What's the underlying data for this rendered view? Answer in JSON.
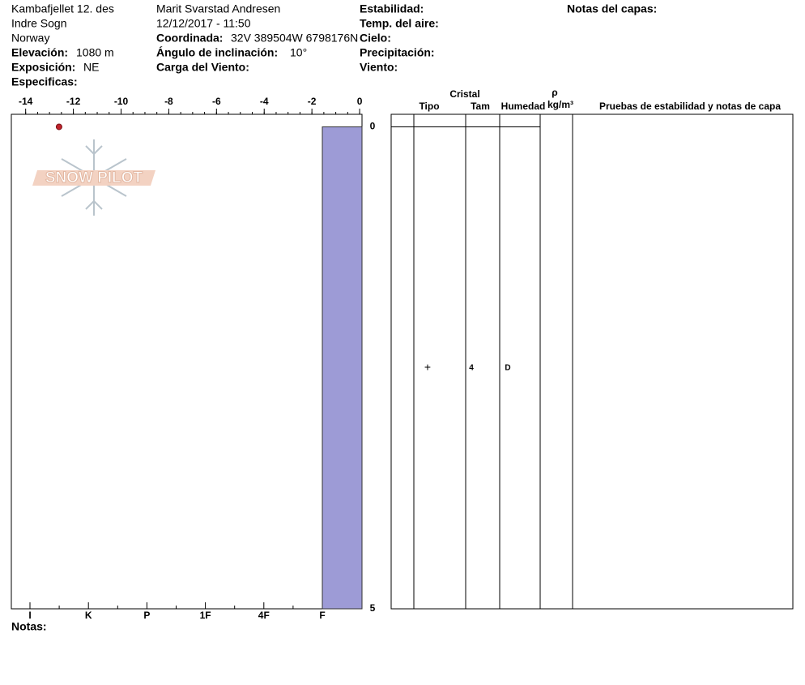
{
  "header": {
    "column1": [
      "Kambafjellet 12. des",
      "Indre Sogn",
      "Norway"
    ],
    "elevation": {
      "label": "Elevación:",
      "value": "1080 m"
    },
    "aspect": {
      "label": "Exposición:",
      "value": "NE"
    },
    "specifics": {
      "label": "Especificas:"
    },
    "observer": "Marit Svarstad Andresen",
    "datetime": "12/12/2017 - 11:50",
    "coordinate": {
      "label": "Coordinada:",
      "value": "32V 389504W 6798176N"
    },
    "slope": {
      "label": "Ángulo de inclinación:",
      "value": "10°"
    },
    "wind_loading": {
      "label": "Carga del Viento:"
    },
    "column3": [
      "Estabilidad:",
      "Temp. del aire:",
      "Cielo:",
      "Precipitación:",
      "Viento:"
    ],
    "layer_notes": "Notas del capas:"
  },
  "logo": "SNOW PILOT",
  "notes": "Notas:",
  "chart_data": {
    "type": "snowprofile",
    "xlim": [
      -14.6,
      0.1
    ],
    "xticks": [
      -14,
      -12,
      -10,
      -8,
      -6,
      -4,
      -2,
      0
    ],
    "ylim": [
      -0.13,
      5
    ],
    "yticks": [
      0,
      5
    ],
    "hardness_categories": [
      "I",
      "K",
      "P",
      "1F",
      "4F",
      "F"
    ],
    "bar_color": "#9d9bd6",
    "temperatures": [
      {
        "depth": 0,
        "temp": -12.6
      }
    ],
    "layers": [
      {
        "top": 0,
        "bottom": 5,
        "hardness": "F",
        "grain_type": "+",
        "grain_size": 4,
        "moisture": "D"
      }
    ],
    "table_headers": {
      "crystal": "Cristal",
      "type": "Tipo",
      "size": "Tam",
      "moisture": "Humedad",
      "rho": "ρ",
      "density_unit": "kg/m³",
      "tests": "Pruebas de estabilidad y notas de capa"
    }
  }
}
